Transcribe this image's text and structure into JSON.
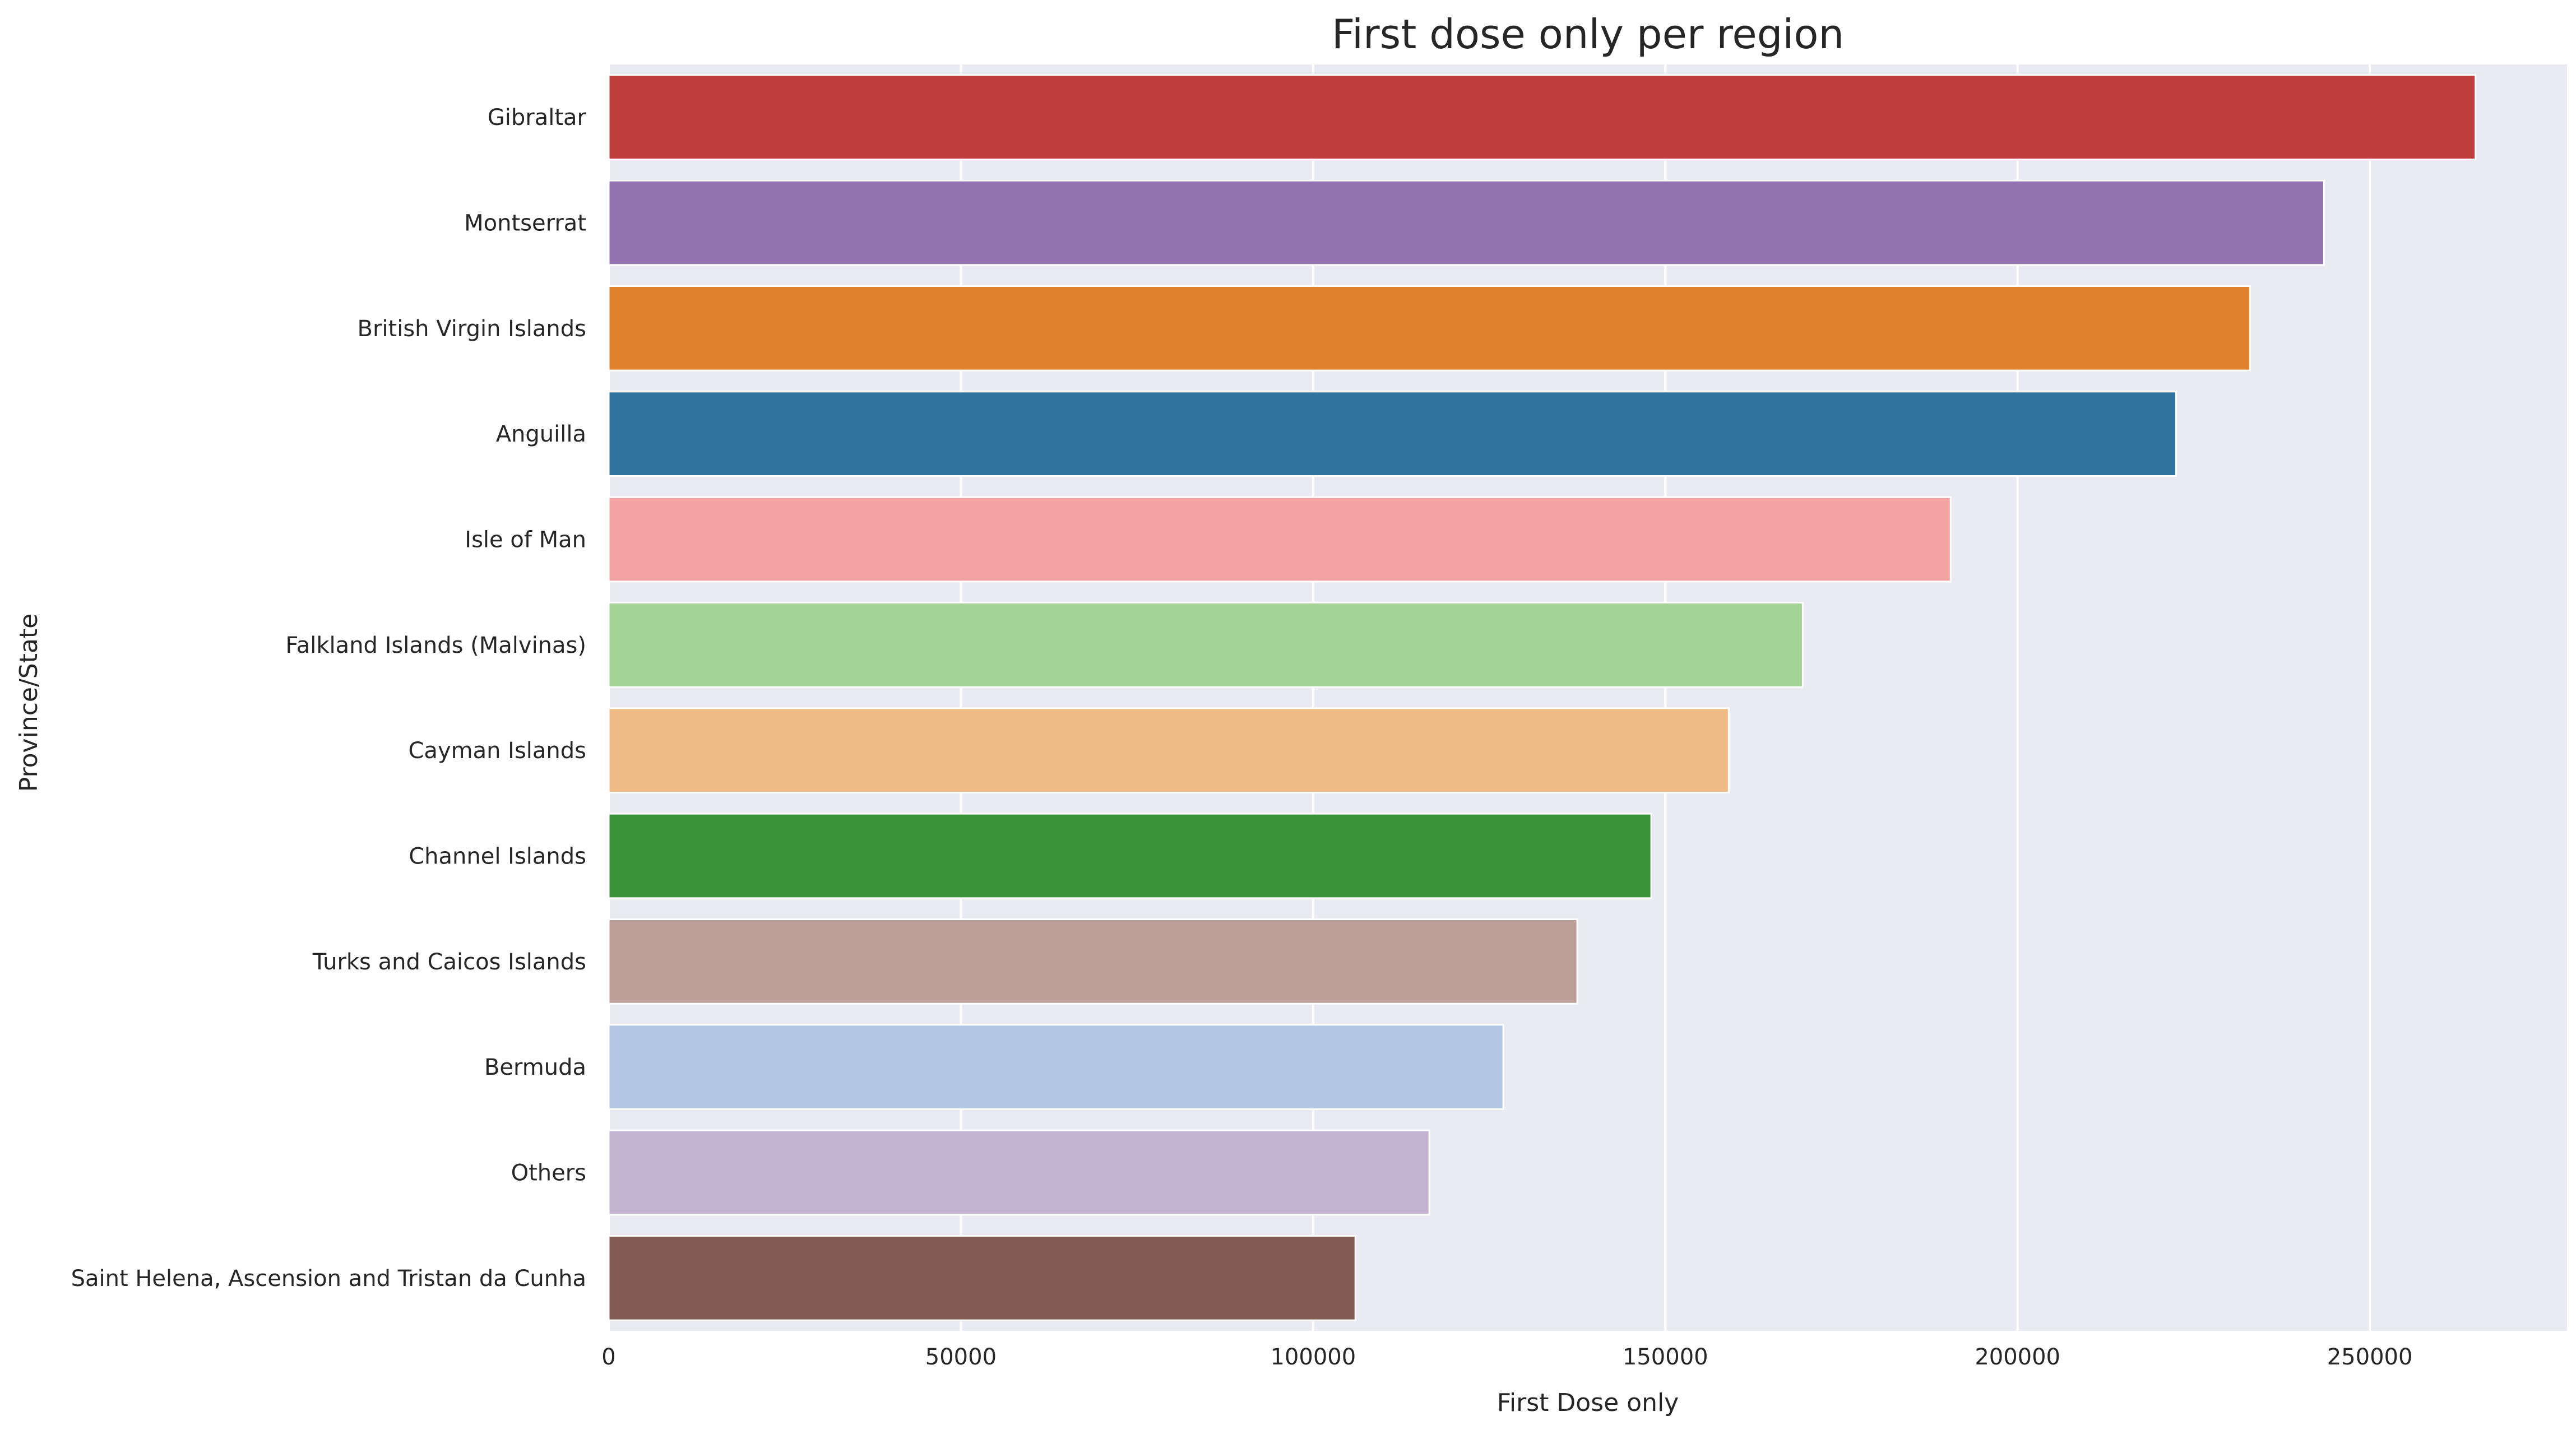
{
  "chart_data": {
    "type": "bar",
    "orientation": "horizontal",
    "title": "First dose only per region",
    "xlabel": "First Dose only",
    "ylabel": "Province/State",
    "xlim": [
      0,
      278000
    ],
    "xticks": [
      0,
      50000,
      100000,
      150000,
      200000,
      250000
    ],
    "grid": true,
    "legend": "none",
    "categories": [
      "Gibraltar",
      "Montserrat",
      "British Virgin Islands",
      "Anguilla",
      "Isle of Man",
      "Falkland Islands (Malvinas)",
      "Cayman Islands",
      "Channel Islands",
      "Turks and Caicos Islands",
      "Bermuda",
      "Others",
      "Saint Helena, Ascension and Tristan da Cunha"
    ],
    "values": [
      265000,
      243500,
      233000,
      222500,
      190500,
      169500,
      159000,
      148000,
      137500,
      127000,
      116500,
      106000
    ],
    "colors": [
      "#c03d3e",
      "#9372b0",
      "#e1812c",
      "#3274a1",
      "#f3a3a2",
      "#a0d394",
      "#efbc88",
      "#3a923a",
      "#bc9f98",
      "#b3c6e2",
      "#c4b3d1",
      "#845b53"
    ]
  }
}
